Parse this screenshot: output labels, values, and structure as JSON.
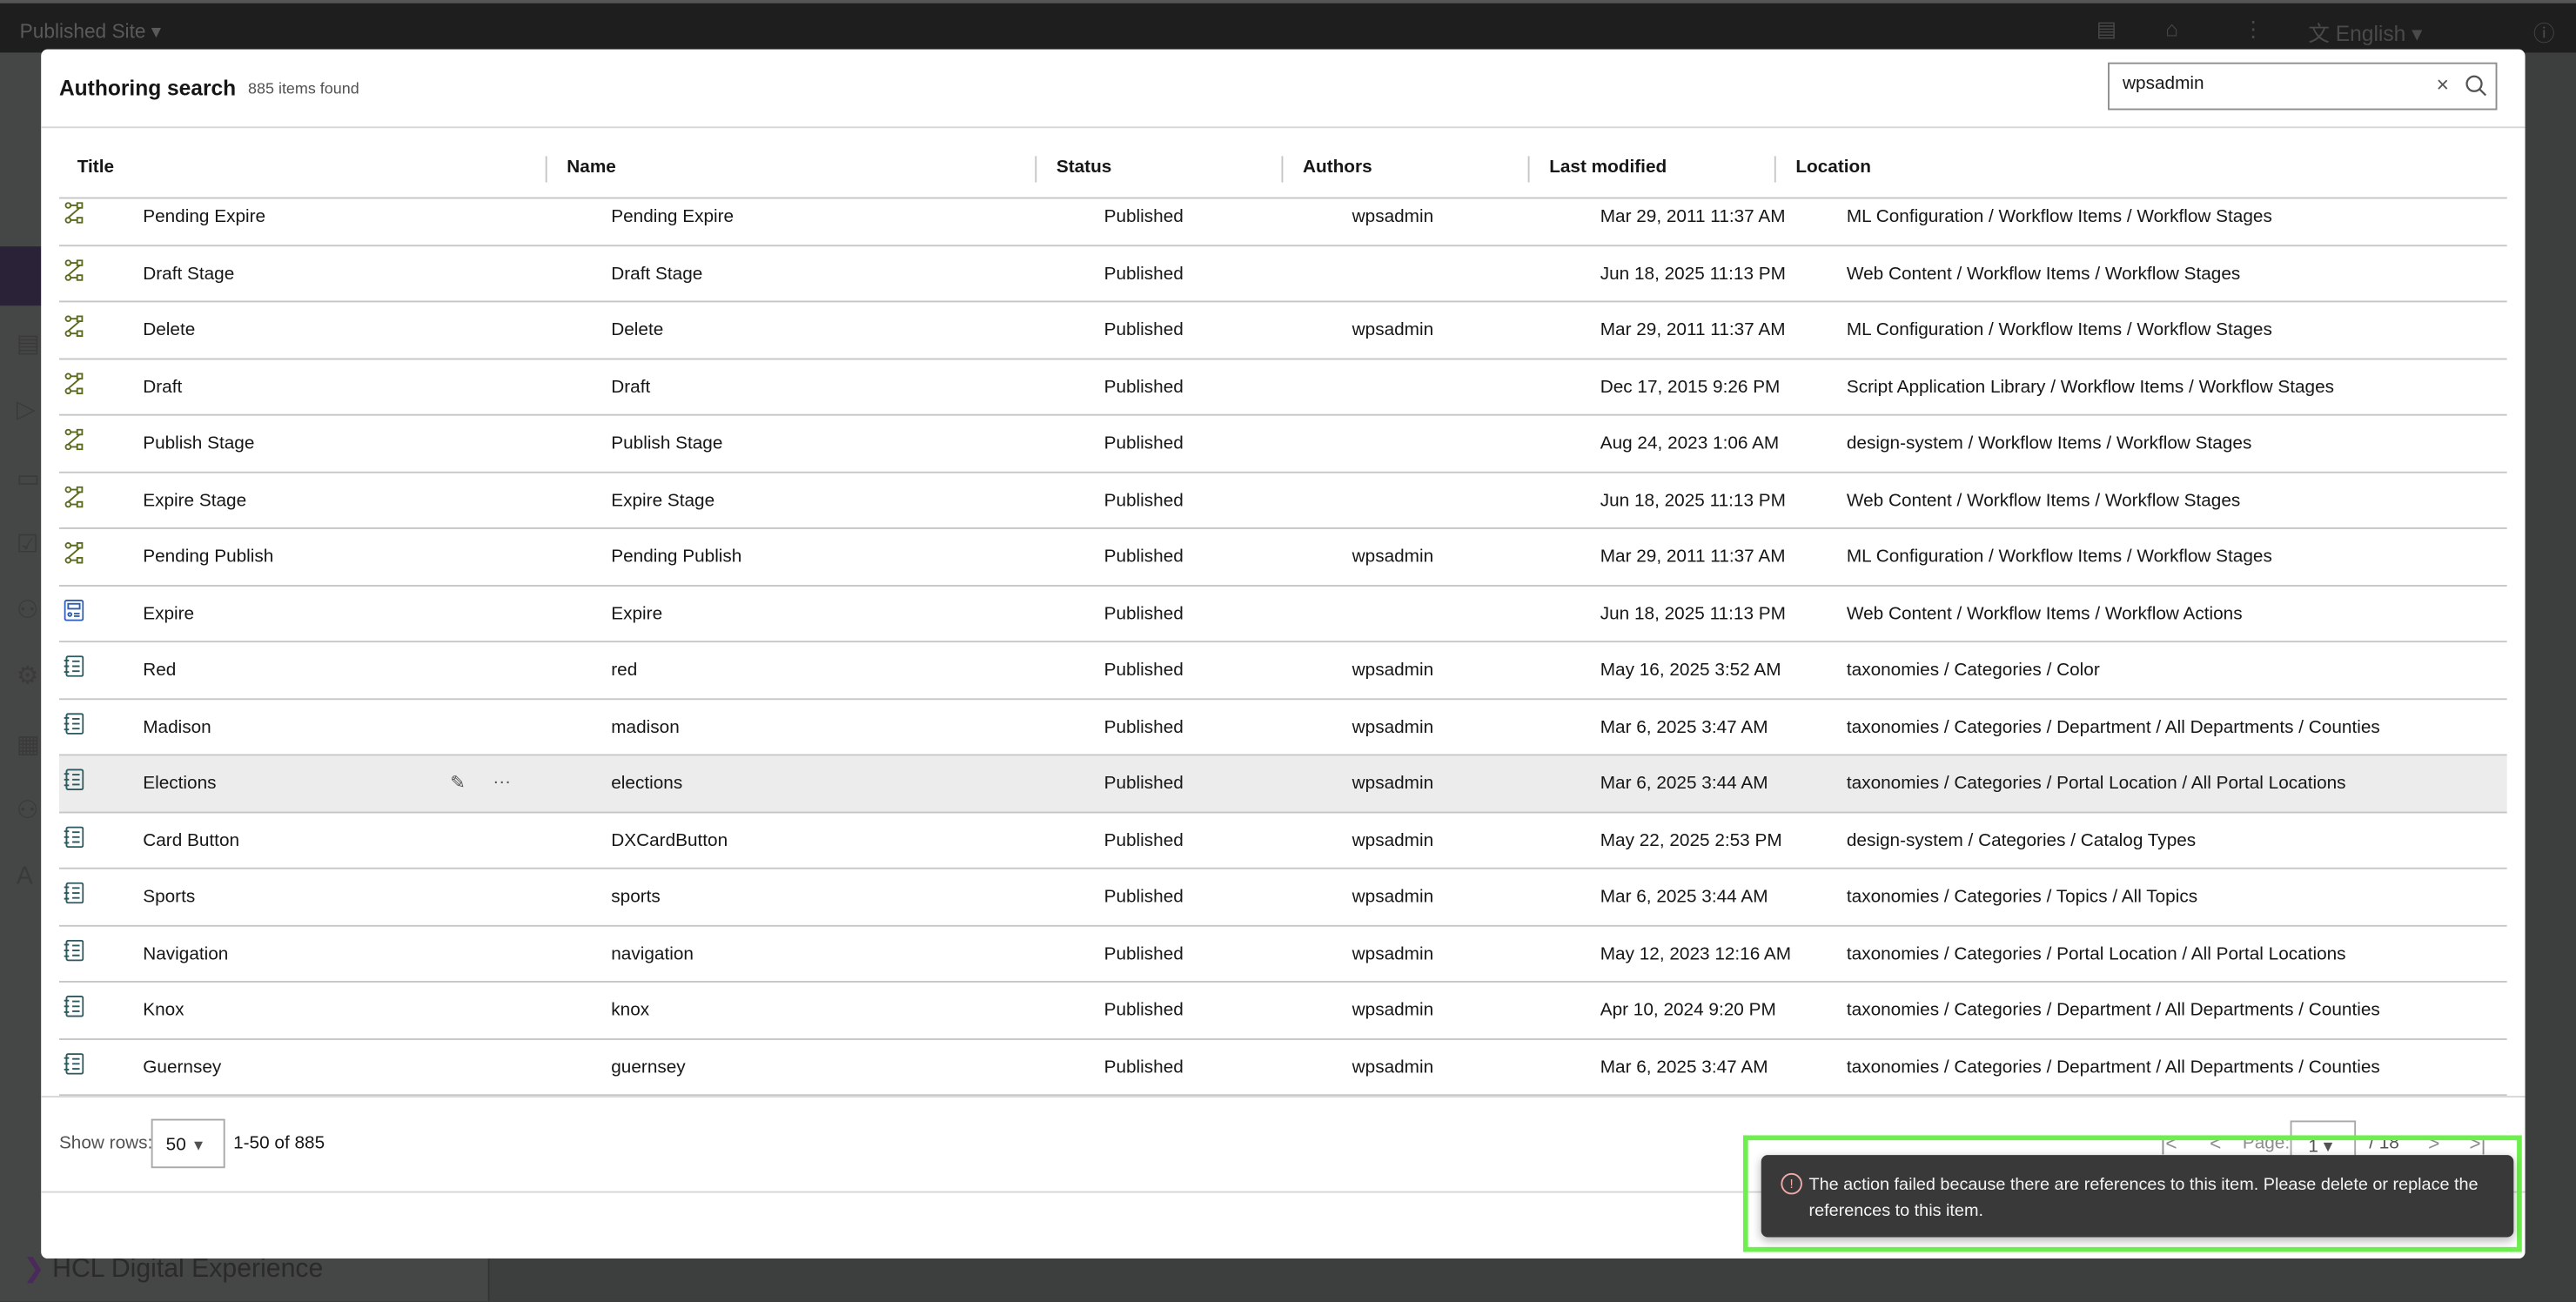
{
  "topbar": {
    "site_selector": "Published Site",
    "language": "English"
  },
  "background": {
    "brand": "HCL Digital Experience"
  },
  "modal": {
    "title": "Authoring search",
    "count": "885 items found",
    "search": {
      "value": "wpsadmin"
    },
    "columns": [
      "Title",
      "Name",
      "Status",
      "Authors",
      "Last modified",
      "Location"
    ],
    "rows": [
      {
        "icon": "workflow-stage-icon",
        "title": "Pending Expire",
        "name": "Pending Expire",
        "status": "Published",
        "author": "wpsadmin",
        "modified": "Mar 29, 2011 11:37 AM",
        "location": "ML Configuration / Workflow Items / Workflow Stages"
      },
      {
        "icon": "workflow-stage-icon",
        "title": "Draft Stage",
        "name": "Draft Stage",
        "status": "Published",
        "author": "",
        "modified": "Jun 18, 2025 11:13 PM",
        "location": "Web Content / Workflow Items / Workflow Stages"
      },
      {
        "icon": "workflow-stage-icon",
        "title": "Delete",
        "name": "Delete",
        "status": "Published",
        "author": "wpsadmin",
        "modified": "Mar 29, 2011 11:37 AM",
        "location": "ML Configuration / Workflow Items / Workflow Stages"
      },
      {
        "icon": "workflow-stage-icon",
        "title": "Draft",
        "name": "Draft",
        "status": "Published",
        "author": "",
        "modified": "Dec 17, 2015 9:26 PM",
        "location": "Script Application Library / Workflow Items / Workflow Stages"
      },
      {
        "icon": "workflow-stage-icon",
        "title": "Publish Stage",
        "name": "Publish Stage",
        "status": "Published",
        "author": "",
        "modified": "Aug 24, 2023 1:06 AM",
        "location": "design-system / Workflow Items / Workflow Stages"
      },
      {
        "icon": "workflow-stage-icon",
        "title": "Expire Stage",
        "name": "Expire Stage",
        "status": "Published",
        "author": "",
        "modified": "Jun 18, 2025 11:13 PM",
        "location": "Web Content / Workflow Items / Workflow Stages"
      },
      {
        "icon": "workflow-stage-icon",
        "title": "Pending Publish",
        "name": "Pending Publish",
        "status": "Published",
        "author": "wpsadmin",
        "modified": "Mar 29, 2011 11:37 AM",
        "location": "ML Configuration / Workflow Items / Workflow Stages"
      },
      {
        "icon": "workflow-action-icon",
        "title": "Expire",
        "name": "Expire",
        "status": "Published",
        "author": "",
        "modified": "Jun 18, 2025 11:13 PM",
        "location": "Web Content / Workflow Items / Workflow Actions"
      },
      {
        "icon": "category-icon",
        "title": "Red",
        "name": "red",
        "status": "Published",
        "author": "wpsadmin",
        "modified": "May 16, 2025 3:52 AM",
        "location": "taxonomies / Categories / Color"
      },
      {
        "icon": "category-icon",
        "title": "Madison",
        "name": "madison",
        "status": "Published",
        "author": "wpsadmin",
        "modified": "Mar 6, 2025 3:47 AM",
        "location": "taxonomies / Categories / Department / All Departments / Counties"
      },
      {
        "icon": "category-icon",
        "title": "Elections",
        "name": "elections",
        "status": "Published",
        "author": "wpsadmin",
        "modified": "Mar 6, 2025 3:44 AM",
        "location": "taxonomies / Categories / Portal Location / All Portal Locations",
        "hovered": true
      },
      {
        "icon": "category-icon",
        "title": "Card Button",
        "name": "DXCardButton",
        "status": "Published",
        "author": "wpsadmin",
        "modified": "May 22, 2025 2:53 PM",
        "location": "design-system / Categories / Catalog Types"
      },
      {
        "icon": "category-icon",
        "title": "Sports",
        "name": "sports",
        "status": "Published",
        "author": "wpsadmin",
        "modified": "Mar 6, 2025 3:44 AM",
        "location": "taxonomies / Categories / Topics / All Topics"
      },
      {
        "icon": "category-icon",
        "title": "Navigation",
        "name": "navigation",
        "status": "Published",
        "author": "wpsadmin",
        "modified": "May 12, 2023 12:16 AM",
        "location": "taxonomies / Categories / Portal Location / All Portal Locations"
      },
      {
        "icon": "category-icon",
        "title": "Knox",
        "name": "knox",
        "status": "Published",
        "author": "wpsadmin",
        "modified": "Apr 10, 2024 9:20 PM",
        "location": "taxonomies / Categories / Department / All Departments / Counties"
      },
      {
        "icon": "category-icon",
        "title": "Guernsey",
        "name": "guernsey",
        "status": "Published",
        "author": "wpsadmin",
        "modified": "Mar 6, 2025 3:47 AM",
        "location": "taxonomies / Categories / Department / All Departments / Counties"
      }
    ],
    "footer": {
      "show_rows_label": "Show rows:",
      "rows_per_page": "50",
      "range": "1-50 of 885",
      "page_label": "Page:",
      "page": "1",
      "total_pages": "/ 18"
    }
  },
  "toast": {
    "kind": "error",
    "message": "The action failed because there are references to this item. Please delete or replace the references to this item."
  },
  "colors": {
    "workflow_icon": "#5a6b1f",
    "action_icon": "#2f5fb3",
    "category_icon": "#2d5a5f",
    "highlight_outline": "#6cf04c",
    "toast_bg": "#393939"
  }
}
